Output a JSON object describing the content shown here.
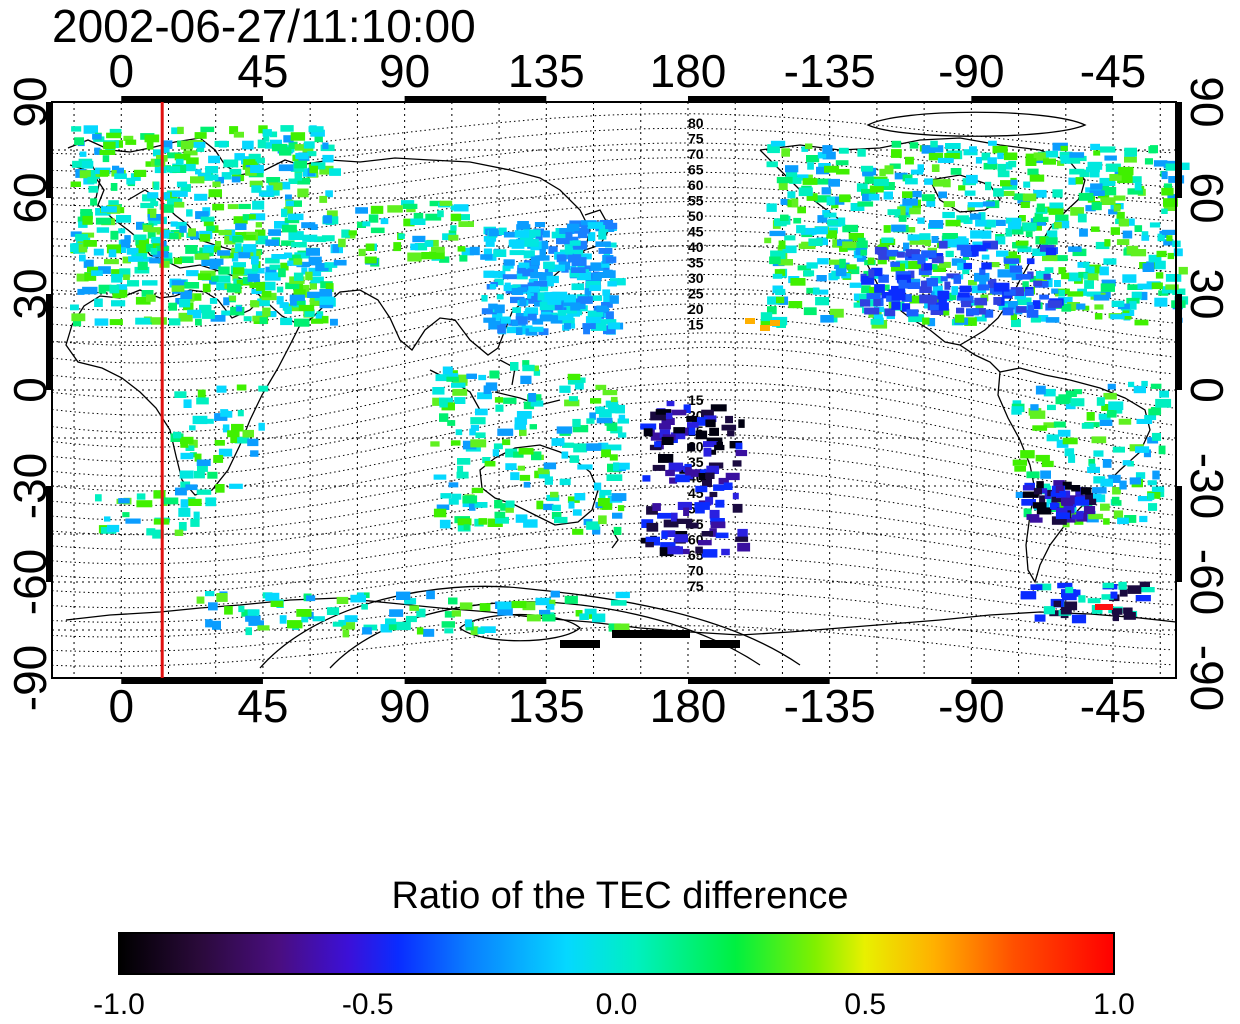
{
  "timestamp": "2002-06-27/11:10:00",
  "map": {
    "lon_ticks": [
      {
        "lon": 0,
        "label": "0"
      },
      {
        "lon": 45,
        "label": "45"
      },
      {
        "lon": 90,
        "label": "90"
      },
      {
        "lon": 135,
        "label": "135"
      },
      {
        "lon": 180,
        "label": "180"
      },
      {
        "lon": 225,
        "label": "-135"
      },
      {
        "lon": 270,
        "label": "-90"
      },
      {
        "lon": 315,
        "label": "-45"
      }
    ],
    "lat_ticks": [
      {
        "lat": 90,
        "label": "90"
      },
      {
        "lat": 60,
        "label": "60"
      },
      {
        "lat": 30,
        "label": "30"
      },
      {
        "lat": 0,
        "label": "0"
      },
      {
        "lat": -30,
        "label": "-30"
      },
      {
        "lat": -60,
        "label": "-60"
      },
      {
        "lat": -90,
        "label": "-90"
      }
    ],
    "lon_range": [
      -22,
      335
    ],
    "lat_range": [
      -90,
      90
    ],
    "marker_lon": 13,
    "marker_color": "#e01010",
    "north_contour_labels": [
      "80",
      "75",
      "70",
      "65",
      "60",
      "55",
      "50",
      "45",
      "40",
      "35",
      "30",
      "25",
      "20",
      "15"
    ],
    "south_contour_labels": [
      "15",
      "20",
      "25",
      "30",
      "35",
      "40",
      "45",
      "50",
      "55",
      "60",
      "65",
      "70",
      "75"
    ]
  },
  "colorbar": {
    "title": "Ratio of the TEC difference",
    "labels": [
      "-1.0",
      "-0.5",
      "0.0",
      "0.5",
      "1.0"
    ],
    "range": [
      -1.0,
      1.0
    ]
  }
}
